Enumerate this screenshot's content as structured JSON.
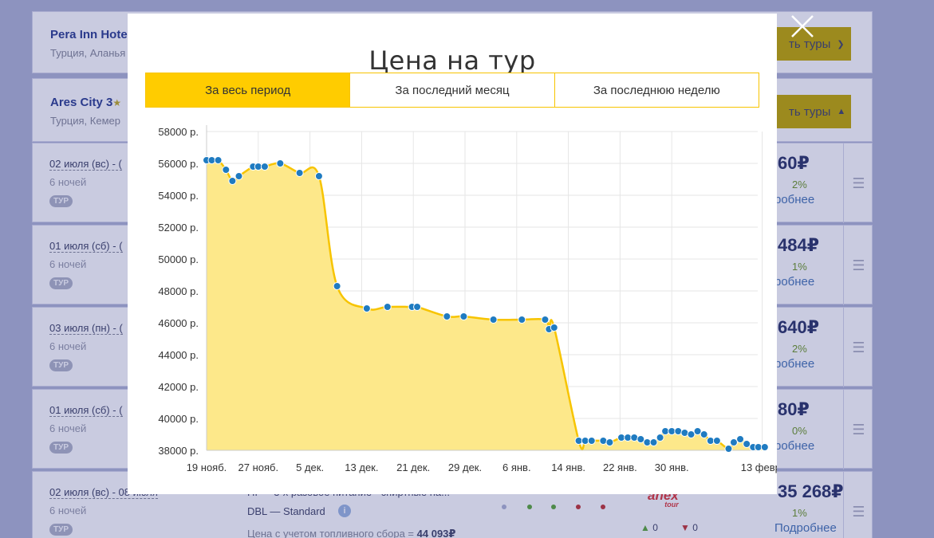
{
  "hotels": [
    {
      "name": "Pera Inn Hote",
      "stars": "",
      "location": "Турция, Аланья",
      "button": "ть туры"
    },
    {
      "name": "Ares City",
      "stars": "3",
      "location": "Турция, Кемер",
      "button": "ть туры"
    }
  ],
  "tours": [
    {
      "date": "02 июля (вс) - (",
      "nights": "6 ночей",
      "badge": "ТУР",
      "price": "60₽",
      "pct": "2%",
      "more": "робнее"
    },
    {
      "date": "01 июля (сб) - (",
      "nights": "6 ночей",
      "badge": "ТУР",
      "price": "484₽",
      "pct": "1%",
      "more": "робнее"
    },
    {
      "date": "03 июля (пн) - (",
      "nights": "6 ночей",
      "badge": "ТУР",
      "price": "640₽",
      "pct": "2%",
      "more": "робнее"
    },
    {
      "date": "01 июля (сб) - (",
      "nights": "6 ночей",
      "badge": "ТУР",
      "price": "80₽",
      "pct": "0%",
      "more": "робнее"
    },
    {
      "date": "02 июля (вс) - 08 июля",
      "nights": "6 ночей",
      "badge": "ТУР",
      "price": "35 268₽",
      "pct": "1%",
      "more": "Подробнее"
    }
  ],
  "tour_extra": {
    "meal": "HI — 3-х разовое питание - спиртные на...",
    "room": "DBL — Standard",
    "fuel_label": "Цена с учетом топливного сбора =",
    "fuel_value": "44 093₽",
    "operator": "anex",
    "operator_sub": "tour",
    "likes": "0",
    "dislikes": "0"
  },
  "modal": {
    "title": "Цена на тур",
    "tabs": [
      "За весь период",
      "За последний месяц",
      "За последнюю неделю"
    ],
    "active_tab": 0
  },
  "colors": {
    "accent": "#ffcc00",
    "line": "#f7c400",
    "fill": "#fde88a",
    "point": "#1f7bc1"
  },
  "chart_data": {
    "type": "area",
    "title": "",
    "xlabel": "",
    "ylabel": "",
    "ylim": [
      38000,
      58000
    ],
    "yticks": [
      {
        "value": 58000,
        "label": "58000 р."
      },
      {
        "value": 56000,
        "label": "56000 р."
      },
      {
        "value": 54000,
        "label": "54000 р."
      },
      {
        "value": 52000,
        "label": "52000 р."
      },
      {
        "value": 50000,
        "label": "50000 р."
      },
      {
        "value": 48000,
        "label": "48000 р."
      },
      {
        "value": 46000,
        "label": "46000 р."
      },
      {
        "value": 44000,
        "label": "44000 р."
      },
      {
        "value": 42000,
        "label": "42000 р."
      },
      {
        "value": 40000,
        "label": "40000 р."
      },
      {
        "value": 38000,
        "label": "38000 р."
      }
    ],
    "xticks": [
      {
        "day": 0,
        "label": "19 нояб."
      },
      {
        "day": 8,
        "label": "27 нояб."
      },
      {
        "day": 16,
        "label": "5 дек."
      },
      {
        "day": 24,
        "label": "13 дек."
      },
      {
        "day": 32,
        "label": "21 дек."
      },
      {
        "day": 40,
        "label": "29 дек."
      },
      {
        "day": 48,
        "label": "6 янв."
      },
      {
        "day": 56,
        "label": "14 янв."
      },
      {
        "day": 64,
        "label": "22 янв."
      },
      {
        "day": 72,
        "label": "30 янв."
      },
      {
        "day": 86,
        "label": "13 февр."
      }
    ],
    "grid": true,
    "points": [
      [
        0,
        56200
      ],
      [
        0.8,
        56200
      ],
      [
        1.8,
        56200
      ],
      [
        3,
        55600
      ],
      [
        4,
        54900
      ],
      [
        5,
        55200
      ],
      [
        7.2,
        55800
      ],
      [
        8,
        55800
      ],
      [
        9,
        55800
      ],
      [
        11.4,
        56000
      ],
      [
        14.4,
        55400
      ],
      [
        17.4,
        55200
      ],
      [
        20.2,
        48300
      ],
      [
        24.8,
        46900
      ],
      [
        28,
        47000
      ],
      [
        31.8,
        47000
      ],
      [
        32.6,
        47000
      ],
      [
        37.2,
        46400
      ],
      [
        39.8,
        46400
      ],
      [
        44.4,
        46200
      ],
      [
        48.8,
        46200
      ],
      [
        52.4,
        46200
      ],
      [
        53,
        45600
      ],
      [
        53.8,
        45700
      ],
      [
        57.6,
        38600
      ],
      [
        58.6,
        38600
      ],
      [
        59.6,
        38600
      ],
      [
        61.4,
        38600
      ],
      [
        62.4,
        38500
      ],
      [
        64.2,
        38800
      ],
      [
        65.2,
        38800
      ],
      [
        66.2,
        38800
      ],
      [
        67.2,
        38700
      ],
      [
        68.2,
        38500
      ],
      [
        69.2,
        38500
      ],
      [
        70.2,
        38800
      ],
      [
        71,
        39200
      ],
      [
        72,
        39200
      ],
      [
        73,
        39200
      ],
      [
        74,
        39100
      ],
      [
        75,
        39000
      ],
      [
        76,
        39200
      ],
      [
        77,
        39000
      ],
      [
        78,
        38600
      ],
      [
        79,
        38600
      ],
      [
        80.8,
        38100
      ],
      [
        81.6,
        38500
      ],
      [
        82.6,
        38700
      ],
      [
        83.6,
        38400
      ],
      [
        84.6,
        38200
      ],
      [
        85.4,
        38200
      ],
      [
        86.4,
        38200
      ]
    ]
  }
}
